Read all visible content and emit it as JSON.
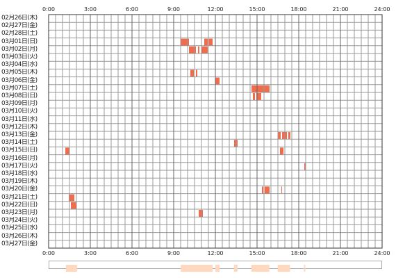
{
  "colors": {
    "activity": "#ef6c4c",
    "summary": "#ffd8bf",
    "grid": "#999999",
    "border": "#333333"
  },
  "hour_labels": [
    "0:00",
    "3:00",
    "6:00",
    "9:00",
    "12:00",
    "15:00",
    "18:00",
    "21:00",
    "24:00"
  ],
  "days": [
    "02月26日(木)",
    "02月27日(金)",
    "02月28日(土)",
    "03月01日(日)",
    "03月02日(月)",
    "03月03日(火)",
    "03月04日(水)",
    "03月05日(木)",
    "03月06日(金)",
    "03月07日(土)",
    "03月08日(日)",
    "03月09日(月)",
    "03月10日(火)",
    "03月11日(水)",
    "03月12日(木)",
    "03月13日(金)",
    "03月14日(土)",
    "03月15日(日)",
    "03月16日(月)",
    "03月17日(火)",
    "03月18日(水)",
    "03月19日(木)",
    "03月20日(金)",
    "03月21日(土)",
    "03月22日(日)",
    "03月23日(月)",
    "03月24日(火)",
    "03月25日(水)",
    "03月26日(木)",
    "03月27日(金)"
  ],
  "activity": [
    {
      "day": 3,
      "start": 9.5,
      "end": 10.1
    },
    {
      "day": 3,
      "start": 11.2,
      "end": 11.45
    },
    {
      "day": 3,
      "start": 11.5,
      "end": 11.8
    },
    {
      "day": 4,
      "start": 10.1,
      "end": 10.6
    },
    {
      "day": 4,
      "start": 10.75,
      "end": 10.85
    },
    {
      "day": 4,
      "start": 11.0,
      "end": 11.45
    },
    {
      "day": 7,
      "start": 10.2,
      "end": 10.45
    },
    {
      "day": 7,
      "start": 10.6,
      "end": 10.7
    },
    {
      "day": 8,
      "start": 12.0,
      "end": 12.3
    },
    {
      "day": 9,
      "start": 14.6,
      "end": 15.9
    },
    {
      "day": 10,
      "start": 14.7,
      "end": 14.85
    },
    {
      "day": 10,
      "start": 14.95,
      "end": 15.3
    },
    {
      "day": 15,
      "start": 16.5,
      "end": 16.7
    },
    {
      "day": 15,
      "start": 16.8,
      "end": 17.15
    },
    {
      "day": 15,
      "start": 17.25,
      "end": 17.4
    },
    {
      "day": 16,
      "start": 13.35,
      "end": 13.6
    },
    {
      "day": 17,
      "start": 1.2,
      "end": 1.5
    },
    {
      "day": 17,
      "start": 16.65,
      "end": 16.9
    },
    {
      "day": 19,
      "start": 18.4,
      "end": 18.5
    },
    {
      "day": 22,
      "start": 15.35,
      "end": 15.45
    },
    {
      "day": 22,
      "start": 15.55,
      "end": 15.9
    },
    {
      "day": 22,
      "start": 16.75,
      "end": 16.8
    },
    {
      "day": 23,
      "start": 1.45,
      "end": 1.85
    },
    {
      "day": 24,
      "start": 1.6,
      "end": 2.0
    },
    {
      "day": 25,
      "start": 10.8,
      "end": 11.1
    }
  ],
  "summary": [
    {
      "start": 1.2,
      "end": 2.0
    },
    {
      "start": 9.5,
      "end": 11.8
    },
    {
      "start": 12.0,
      "end": 12.3
    },
    {
      "start": 13.35,
      "end": 13.6
    },
    {
      "start": 14.6,
      "end": 15.9
    },
    {
      "start": 16.5,
      "end": 17.4
    },
    {
      "start": 18.4,
      "end": 18.5
    }
  ]
}
